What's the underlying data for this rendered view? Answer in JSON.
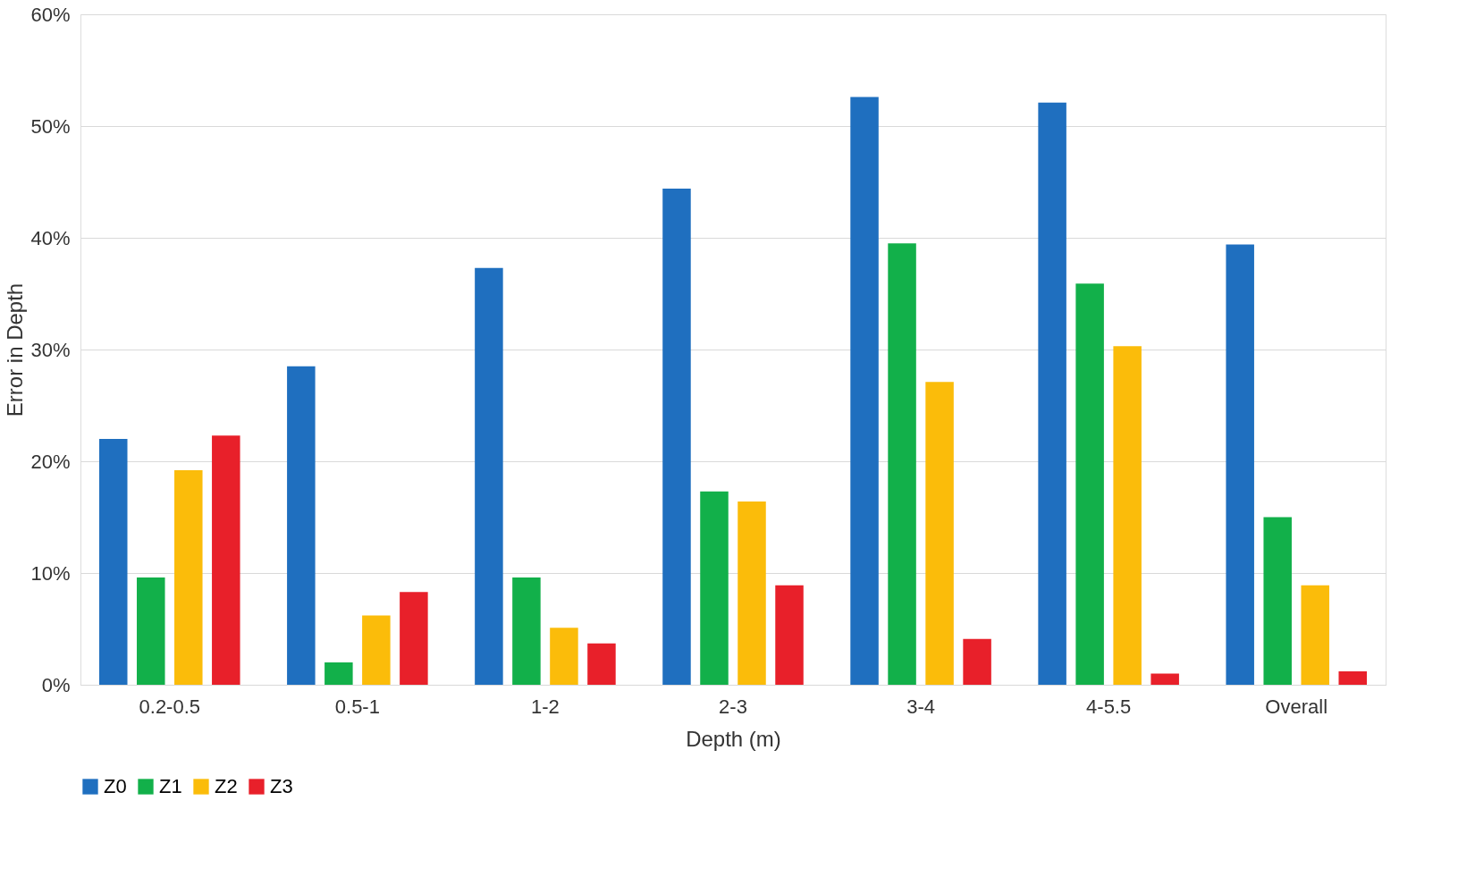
{
  "chart_data": {
    "type": "bar",
    "xlabel": "Depth (m)",
    "ylabel": "Error in Depth",
    "categories": [
      "0.2-0.5",
      "0.5-1",
      "1-2",
      "2-3",
      "3-4",
      "4-5.5",
      "Overall"
    ],
    "series": [
      {
        "name": "Z0",
        "color": "#1f6fbf",
        "values": [
          22.0,
          28.5,
          37.3,
          44.4,
          52.6,
          52.1,
          39.4
        ]
      },
      {
        "name": "Z1",
        "color": "#12b04a",
        "values": [
          9.6,
          2.0,
          9.6,
          17.3,
          39.5,
          35.9,
          15.0
        ]
      },
      {
        "name": "Z2",
        "color": "#fbbc0a",
        "values": [
          19.2,
          6.2,
          5.1,
          16.4,
          27.1,
          30.3,
          8.9
        ]
      },
      {
        "name": "Z3",
        "color": "#e8202a",
        "values": [
          22.3,
          8.3,
          3.7,
          8.9,
          4.1,
          1.0,
          1.2
        ]
      }
    ],
    "ylim": [
      0,
      60
    ],
    "yticks": [
      {
        "value": 0,
        "label": "0%"
      },
      {
        "value": 10,
        "label": "10%"
      },
      {
        "value": 20,
        "label": "20%"
      },
      {
        "value": 30,
        "label": "30%"
      },
      {
        "value": 40,
        "label": "40%"
      },
      {
        "value": 50,
        "label": "50%"
      },
      {
        "value": 60,
        "label": "60%"
      }
    ],
    "grid": "y",
    "legend": "bottom"
  }
}
